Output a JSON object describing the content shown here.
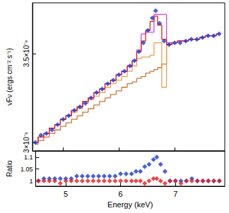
{
  "chart_data": [
    {
      "type": "line",
      "y_label": "νFν (ergs cm⁻² s⁻¹)",
      "x": [
        4.5,
        4.6,
        4.7,
        4.8,
        4.9,
        5.0,
        5.1,
        5.2,
        5.3,
        5.4,
        5.5,
        5.6,
        5.7,
        5.8,
        5.9,
        6.0,
        6.1,
        6.2,
        6.28,
        6.36,
        6.44,
        6.52,
        6.6,
        6.66,
        6.73,
        6.81,
        6.9,
        7.0,
        7.1,
        7.2,
        7.3,
        7.4,
        7.5,
        7.6,
        7.7,
        7.8
      ],
      "xlim": [
        4.45,
        7.9
      ],
      "xticks": [
        5,
        6,
        7
      ],
      "ylim": [
        2.952e-09,
        3.785e-09
      ],
      "yticks": [
        {
          "value": 3e-09,
          "label": "3×10⁻⁹"
        },
        {
          "value": 3.5e-09,
          "label": "3.5×10⁻⁹"
        }
      ],
      "grid": false,
      "tick_labels": "y",
      "series": [
        {
          "type": "line",
          "color": "#c8783c",
          "line_style": "steps",
          "marker": "none",
          "values": [
            2.99e-09,
            3.01e-09,
            3.03e-09,
            3.05e-09,
            3.07e-09,
            3.09e-09,
            3.11e-09,
            3.13e-09,
            3.15e-09,
            3.17e-09,
            3.19e-09,
            3.21e-09,
            3.23e-09,
            3.25e-09,
            3.27e-09,
            3.29e-09,
            3.31e-09,
            3.33e-09,
            3.34e-09,
            3.36e-09,
            3.37e-09,
            3.39e-09,
            3.4e-09,
            3.41e-09,
            3.42e-09,
            3.44e-09,
            3.55e-09,
            3.56e-09,
            3.57e-09,
            3.57e-09,
            3.58e-09,
            3.58e-09,
            3.59e-09,
            3.6e-09,
            3.6e-09,
            3.61e-09
          ]
        },
        {
          "type": "line",
          "color": "#f0a050",
          "line_style": "steps",
          "marker": "none",
          "values": [
            3e-09,
            3.03e-09,
            3.05e-09,
            3.08e-09,
            3.1e-09,
            3.13e-09,
            3.15e-09,
            3.17e-09,
            3.19e-09,
            3.22e-09,
            3.24e-09,
            3.26e-09,
            3.28e-09,
            3.31e-09,
            3.33e-09,
            3.35e-09,
            3.37e-09,
            3.4e-09,
            3.43e-09,
            3.47e-09,
            3.48e-09,
            3.48e-09,
            3.49e-09,
            3.56e-09,
            3.56e-09,
            3.31e-09,
            3.55e-09,
            3.56e-09,
            3.57e-09,
            3.57e-09,
            3.58e-09,
            3.58e-09,
            3.59e-09,
            3.6e-09,
            3.6e-09,
            3.61e-09
          ]
        },
        {
          "type": "line",
          "color": "#e040e0",
          "line_style": "steps",
          "marker": "none",
          "values": [
            3e-09,
            3.03e-09,
            3.05e-09,
            3.08e-09,
            3.1e-09,
            3.13e-09,
            3.15e-09,
            3.18e-09,
            3.2e-09,
            3.23e-09,
            3.25e-09,
            3.28e-09,
            3.3e-09,
            3.33e-09,
            3.35e-09,
            3.38e-09,
            3.4e-09,
            3.43e-09,
            3.46e-09,
            3.52e-09,
            3.61e-09,
            3.62e-09,
            3.62e-09,
            3.72e-09,
            3.72e-09,
            3.72e-09,
            3.56e-09,
            3.56e-09,
            3.57e-09,
            3.57e-09,
            3.58e-09,
            3.58e-09,
            3.59e-09,
            3.6e-09,
            3.6e-09,
            3.61e-09
          ]
        },
        {
          "type": "line",
          "color": "#e02020",
          "line_style": "steps",
          "marker": "none",
          "values": [
            3e-09,
            3.03e-09,
            3.05e-09,
            3.08e-09,
            3.1e-09,
            3.13e-09,
            3.15e-09,
            3.18e-09,
            3.2e-09,
            3.23e-09,
            3.25e-09,
            3.28e-09,
            3.3e-09,
            3.33e-09,
            3.35e-09,
            3.38e-09,
            3.4e-09,
            3.43e-09,
            3.46e-09,
            3.51e-09,
            3.57e-09,
            3.63e-09,
            3.68e-09,
            3.71e-09,
            3.66e-09,
            3.58e-09,
            3.55e-09,
            3.56e-09,
            3.57e-09,
            3.57e-09,
            3.58e-09,
            3.58e-09,
            3.59e-09,
            3.6e-09,
            3.6e-09,
            3.61e-09
          ]
        },
        {
          "type": "scatter",
          "color": "#1a3ccc",
          "marker": "diamond",
          "values": [
            3e-09,
            3.04e-09,
            3.05e-09,
            3.07e-09,
            3.1e-09,
            3.13e-09,
            3.15e-09,
            3.18e-09,
            3.2e-09,
            3.22e-09,
            3.25e-09,
            3.28e-09,
            3.3e-09,
            3.33e-09,
            3.35e-09,
            3.38e-09,
            3.4e-09,
            3.43e-09,
            3.46e-09,
            3.51e-09,
            3.56e-09,
            3.63e-09,
            3.7e-09,
            3.74e-09,
            3.67e-09,
            3.57e-09,
            3.55e-09,
            3.56e-09,
            3.56e-09,
            3.57e-09,
            3.58e-09,
            3.58e-09,
            3.59e-09,
            3.6e-09,
            3.6e-09,
            3.61e-09
          ]
        }
      ]
    },
    {
      "type": "scatter",
      "x_label": "Energy (keV)",
      "y_label": "Ratio",
      "x": [
        4.5,
        4.6,
        4.7,
        4.8,
        4.9,
        5.0,
        5.1,
        5.2,
        5.3,
        5.4,
        5.5,
        5.6,
        5.7,
        5.8,
        5.9,
        6.0,
        6.1,
        6.2,
        6.28,
        6.36,
        6.44,
        6.52,
        6.6,
        6.66,
        6.73,
        6.81,
        6.9,
        7.0,
        7.1,
        7.2,
        7.3,
        7.4,
        7.5,
        7.6,
        7.7,
        7.8
      ],
      "xlim": [
        4.45,
        7.9
      ],
      "xticks": [
        5,
        6,
        7
      ],
      "ylim": [
        0.978,
        1.126
      ],
      "yticks": [
        1,
        1.05,
        1.1
      ],
      "grid": false,
      "series": [
        {
          "color": "#1a3ccc",
          "marker": "diamond",
          "values": [
            1.0,
            1.01,
            1.01,
            1.01,
            1.01,
            1.01,
            1.01,
            1.02,
            1.02,
            1.02,
            1.02,
            1.02,
            1.02,
            1.02,
            1.02,
            1.03,
            1.03,
            1.03,
            1.04,
            1.04,
            1.06,
            1.07,
            1.09,
            1.1,
            1.07,
            1.04,
            1.0,
            1.0,
            1.0,
            1.0,
            1.01,
            1.0,
            1.0,
            1.0,
            1.0,
            1.0
          ]
        },
        {
          "color": "#e02020",
          "marker": "diamond",
          "values": [
            1.0,
            1.0,
            1.0,
            1.0,
            0.99,
            1.0,
            1.0,
            1.0,
            1.0,
            1.0,
            1.0,
            1.0,
            1.0,
            1.0,
            1.0,
            1.0,
            1.0,
            1.0,
            1.0,
            1.0,
            0.99,
            1.0,
            1.01,
            1.01,
            1.0,
            0.99,
            1.0,
            1.0,
            0.99,
            1.0,
            1.0,
            1.0,
            1.0,
            1.0,
            1.0,
            1.0
          ]
        }
      ]
    }
  ]
}
